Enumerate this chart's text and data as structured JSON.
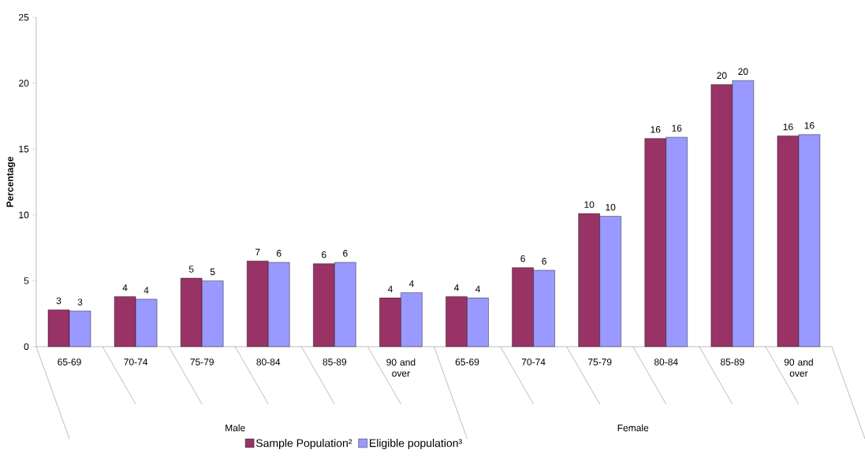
{
  "chart_data": {
    "type": "bar",
    "ylabel": "Percentage",
    "categories": [
      "65-69",
      "70-74",
      "75-79",
      "80-84",
      "85-89",
      "90 and over",
      "65-69",
      "70-74",
      "75-79",
      "80-84",
      "85-89",
      "90 and over"
    ],
    "series": [
      {
        "name": "Sample Population²",
        "color": "#993366",
        "values": [
          2.8,
          3.8,
          5.2,
          6.5,
          6.3,
          3.7,
          3.8,
          6.0,
          10.1,
          15.8,
          19.9,
          16.0
        ],
        "value_labels": [
          "3",
          "4",
          "5",
          "7",
          "6",
          "4",
          "4",
          "6",
          "10",
          "16",
          "20",
          "16"
        ]
      },
      {
        "name": "Eligible population³",
        "color": "#9999ff",
        "values": [
          2.7,
          3.6,
          5.0,
          6.4,
          6.4,
          4.1,
          3.7,
          5.8,
          9.9,
          15.9,
          20.2,
          16.1
        ],
        "value_labels": [
          "3",
          "4",
          "5",
          "6",
          "6",
          "4",
          "4",
          "6",
          "10",
          "16",
          "20",
          "16"
        ]
      }
    ],
    "ylim": [
      0,
      25
    ],
    "yticks": [
      0,
      5,
      10,
      15,
      20,
      25
    ],
    "legend": "bottom",
    "annotations": [
      "Male",
      "Female"
    ]
  }
}
